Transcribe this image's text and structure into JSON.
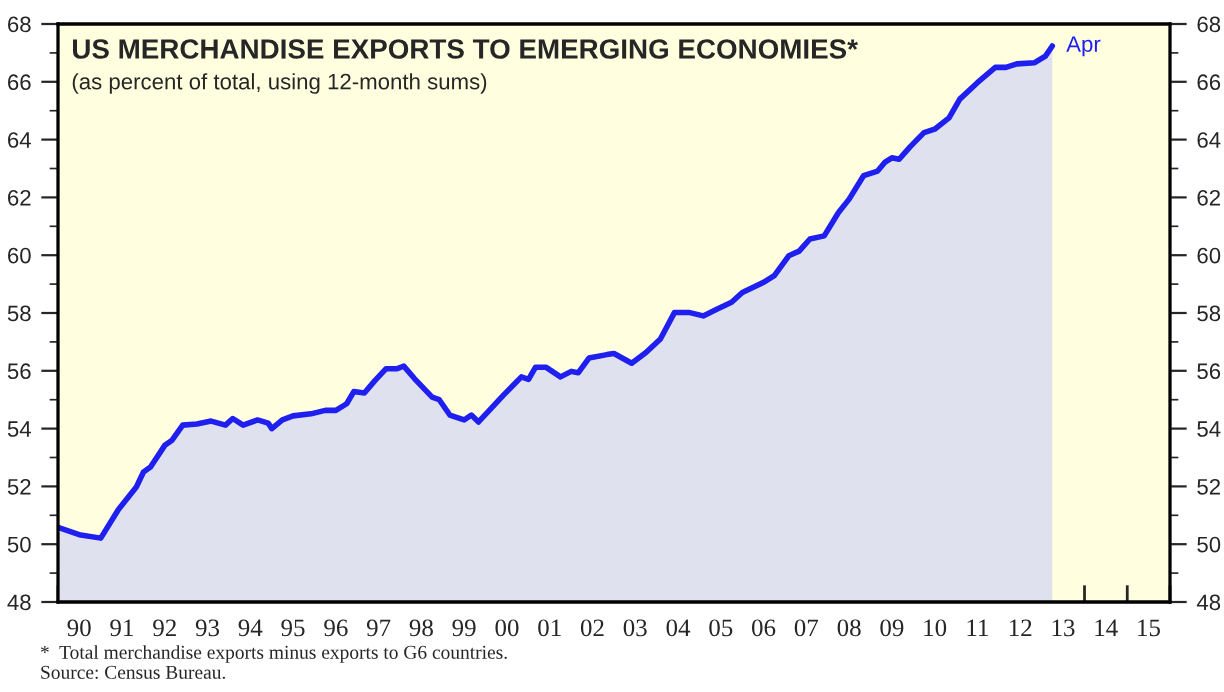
{
  "chart_data": {
    "type": "area",
    "title": "US MERCHANDISE EXPORTS TO EMERGING ECONOMIES*",
    "subtitle": "(as percent of total, using 12-month sums)",
    "annotations": [
      {
        "text": "Apr",
        "x": "2013-04",
        "y": 67.24
      },
      "*  Total merchandise exports minus exports to G6 countries.",
      "Source: Census Bureau."
    ],
    "series": [
      {
        "color": "#1f1fef",
        "x": [
          "1990-01",
          "1990-07",
          "1991-01",
          "1991-06",
          "1991-11",
          "1992-01",
          "1992-03",
          "1992-07",
          "1992-09",
          "1992-12",
          "1993-04",
          "1993-08",
          "1993-12",
          "1994-02",
          "1994-05",
          "1994-09",
          "1994-12",
          "1995-01",
          "1995-04",
          "1995-07",
          "1995-12",
          "1996-04",
          "1996-07",
          "1996-10",
          "1996-12",
          "1997-03",
          "1997-06",
          "1997-09",
          "1997-12",
          "1998-02",
          "1998-05",
          "1998-10",
          "1998-12",
          "1999-03",
          "1999-07",
          "1999-09",
          "1999-11",
          "2000-02",
          "2000-06",
          "2000-11",
          "2001-01",
          "2001-03",
          "2001-06",
          "2001-10",
          "2002-01",
          "2002-03",
          "2002-06",
          "2002-11",
          "2003-01",
          "2003-06",
          "2003-10",
          "2004-02",
          "2004-06",
          "2004-10",
          "2005-02",
          "2005-06",
          "2005-10",
          "2006-01",
          "2006-07",
          "2006-10",
          "2007-02",
          "2007-05",
          "2007-08",
          "2007-12",
          "2008-04",
          "2008-07",
          "2008-11",
          "2009-03",
          "2009-05",
          "2009-07",
          "2009-09",
          "2009-12",
          "2010-04",
          "2010-07",
          "2010-11",
          "2011-02",
          "2011-07",
          "2011-12",
          "2012-03",
          "2012-06",
          "2012-11",
          "2013-02",
          "2013-04"
        ],
        "values": [
          50.58,
          50.33,
          50.21,
          51.2,
          51.98,
          52.5,
          52.67,
          53.42,
          53.6,
          54.12,
          54.16,
          54.26,
          54.12,
          54.35,
          54.12,
          54.3,
          54.19,
          54.0,
          54.3,
          54.44,
          54.51,
          54.63,
          54.63,
          54.86,
          55.28,
          55.23,
          55.67,
          56.07,
          56.07,
          56.16,
          55.74,
          55.09,
          55.0,
          54.47,
          54.3,
          54.47,
          54.23,
          54.63,
          55.16,
          55.79,
          55.7,
          56.12,
          56.12,
          55.79,
          55.98,
          55.93,
          56.44,
          56.56,
          56.6,
          56.26,
          56.63,
          57.1,
          58.02,
          58.02,
          57.9,
          58.14,
          58.37,
          58.71,
          59.06,
          59.29,
          59.98,
          60.14,
          60.56,
          60.67,
          61.48,
          61.94,
          62.75,
          62.91,
          63.21,
          63.37,
          63.32,
          63.74,
          64.24,
          64.36,
          64.75,
          65.4,
          65.97,
          66.5,
          66.5,
          66.62,
          66.66,
          66.89,
          67.24
        ]
      }
    ],
    "xlim": [
      "1990-01",
      "2016-01"
    ],
    "xticks": [
      {
        "value": "1990-01",
        "label": null
      },
      {
        "value": "1990-07",
        "label": "90"
      },
      {
        "value": "1991-01",
        "label": null
      },
      {
        "value": "1991-07",
        "label": "91"
      },
      {
        "value": "1992-01",
        "label": null
      },
      {
        "value": "1992-07",
        "label": "92"
      },
      {
        "value": "1993-01",
        "label": null
      },
      {
        "value": "1993-07",
        "label": "93"
      },
      {
        "value": "1994-01",
        "label": null
      },
      {
        "value": "1994-07",
        "label": "94"
      },
      {
        "value": "1995-01",
        "label": null
      },
      {
        "value": "1995-07",
        "label": "95"
      },
      {
        "value": "1996-01",
        "label": null
      },
      {
        "value": "1996-07",
        "label": "96"
      },
      {
        "value": "1997-01",
        "label": null
      },
      {
        "value": "1997-07",
        "label": "97"
      },
      {
        "value": "1998-01",
        "label": null
      },
      {
        "value": "1998-07",
        "label": "98"
      },
      {
        "value": "1999-01",
        "label": null
      },
      {
        "value": "1999-07",
        "label": "99"
      },
      {
        "value": "2000-01",
        "label": null
      },
      {
        "value": "2000-07",
        "label": "00"
      },
      {
        "value": "2001-01",
        "label": null
      },
      {
        "value": "2001-07",
        "label": "01"
      },
      {
        "value": "2002-01",
        "label": null
      },
      {
        "value": "2002-07",
        "label": "02"
      },
      {
        "value": "2003-01",
        "label": null
      },
      {
        "value": "2003-07",
        "label": "03"
      },
      {
        "value": "2004-01",
        "label": null
      },
      {
        "value": "2004-07",
        "label": "04"
      },
      {
        "value": "2005-01",
        "label": null
      },
      {
        "value": "2005-07",
        "label": "05"
      },
      {
        "value": "2006-01",
        "label": null
      },
      {
        "value": "2006-07",
        "label": "06"
      },
      {
        "value": "2007-01",
        "label": null
      },
      {
        "value": "2007-07",
        "label": "07"
      },
      {
        "value": "2008-01",
        "label": null
      },
      {
        "value": "2008-07",
        "label": "08"
      },
      {
        "value": "2009-01",
        "label": null
      },
      {
        "value": "2009-07",
        "label": "09"
      },
      {
        "value": "2010-01",
        "label": null
      },
      {
        "value": "2010-07",
        "label": "10"
      },
      {
        "value": "2011-01",
        "label": null
      },
      {
        "value": "2011-07",
        "label": "11"
      },
      {
        "value": "2012-01",
        "label": null
      },
      {
        "value": "2012-07",
        "label": "12"
      },
      {
        "value": "2013-01",
        "label": null
      },
      {
        "value": "2013-07",
        "label": "13"
      },
      {
        "value": "2014-01",
        "label": null
      },
      {
        "value": "2014-07",
        "label": "14"
      },
      {
        "value": "2015-01",
        "label": null
      },
      {
        "value": "2015-07",
        "label": "15"
      },
      {
        "value": "2016-01",
        "label": null
      }
    ],
    "ylim": [
      48,
      68
    ],
    "yticks": [
      48,
      {
        "value": 49,
        "label": null
      },
      50,
      {
        "value": 51,
        "label": null
      },
      52,
      {
        "value": 53,
        "label": null
      },
      54,
      {
        "value": 55,
        "label": null
      },
      56,
      {
        "value": 57,
        "label": null
      },
      58,
      {
        "value": 59,
        "label": null
      },
      60,
      {
        "value": 61,
        "label": null
      },
      62,
      {
        "value": 63,
        "label": null
      },
      64,
      {
        "value": 65,
        "label": null
      },
      66,
      {
        "value": 67,
        "label": null
      },
      68
    ],
    "y2lim": [
      48,
      68
    ],
    "y2ticks": [
      48,
      {
        "value": 49,
        "label": null
      },
      50,
      {
        "value": 51,
        "label": null
      },
      52,
      {
        "value": 53,
        "label": null
      },
      54,
      {
        "value": 55,
        "label": null
      },
      56,
      {
        "value": 57,
        "label": null
      },
      58,
      {
        "value": 59,
        "label": null
      },
      60,
      {
        "value": 61,
        "label": null
      },
      62,
      {
        "value": 63,
        "label": null
      },
      64,
      {
        "value": 65,
        "label": null
      },
      66,
      {
        "value": 67,
        "label": null
      },
      68
    ],
    "grid": false,
    "legend": false
  }
}
